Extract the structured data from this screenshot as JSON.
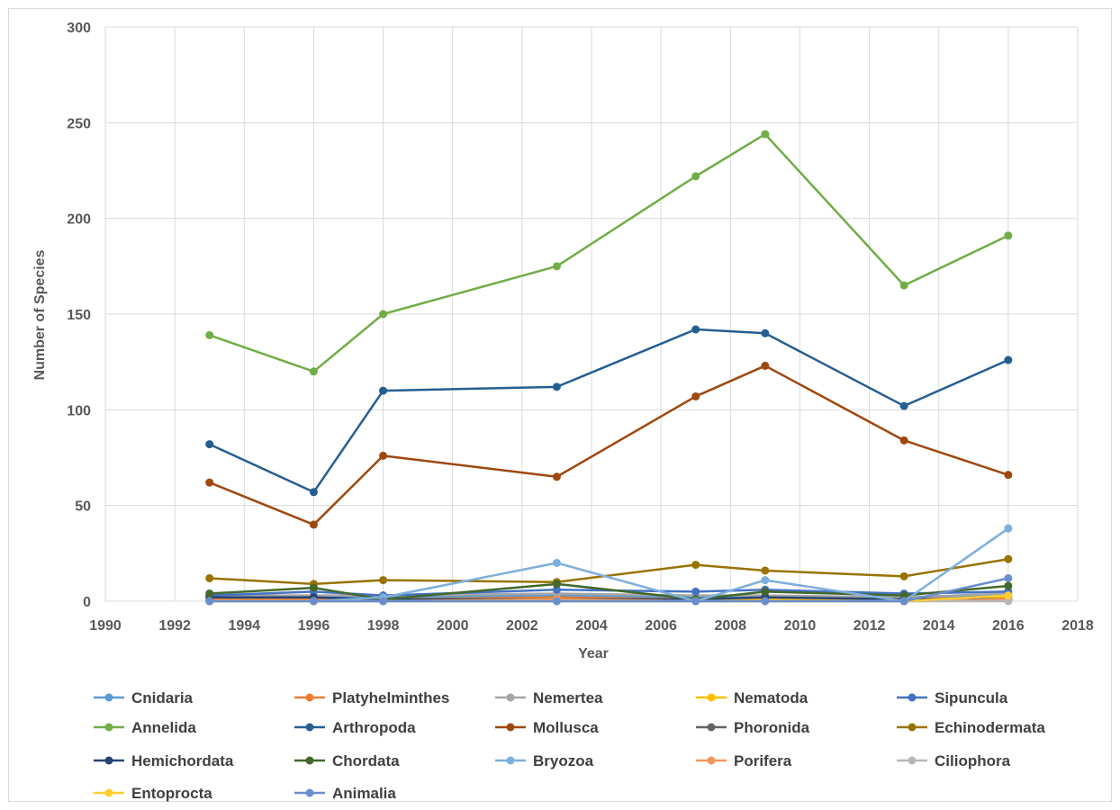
{
  "chart_data": {
    "type": "line",
    "xlabel": "Year",
    "ylabel": "Number of Species",
    "xlim": [
      1990,
      2018
    ],
    "ylim": [
      0,
      300
    ],
    "x_ticks": [
      "1990",
      "1992",
      "1994",
      "1996",
      "1998",
      "2000",
      "2002",
      "2004",
      "2006",
      "2008",
      "2010",
      "2012",
      "2014",
      "2016",
      "2018"
    ],
    "y_ticks": [
      "0",
      "50",
      "100",
      "150",
      "200",
      "250",
      "300"
    ],
    "grid": true,
    "legend_position": "bottom",
    "x": [
      1993,
      1996,
      1998,
      2003,
      2007,
      2009,
      2013,
      2016
    ],
    "series": [
      {
        "name": "Cnidaria",
        "color": "#5b9bd5",
        "values": [
          2,
          2,
          2,
          3,
          2,
          2,
          2,
          3
        ]
      },
      {
        "name": "Platyhelminthes",
        "color": "#ed7d31",
        "values": [
          1,
          1,
          1,
          2,
          1,
          1,
          1,
          2
        ]
      },
      {
        "name": "Nemertea",
        "color": "#a5a5a5",
        "values": [
          3,
          3,
          3,
          4,
          3,
          3,
          2,
          4
        ]
      },
      {
        "name": "Nematoda",
        "color": "#ffc000",
        "values": [
          0,
          0,
          1,
          1,
          0,
          1,
          0,
          2
        ]
      },
      {
        "name": "Sipuncula",
        "color": "#4472c4",
        "values": [
          3,
          5,
          3,
          6,
          5,
          6,
          4,
          5
        ]
      },
      {
        "name": "Annelida",
        "color": "#70ad47",
        "values": [
          139,
          120,
          150,
          175,
          222,
          244,
          165,
          191
        ]
      },
      {
        "name": "Arthropoda",
        "color": "#255e91",
        "values": [
          82,
          57,
          110,
          112,
          142,
          140,
          102,
          126
        ]
      },
      {
        "name": "Mollusca",
        "color": "#9e480e",
        "values": [
          62,
          40,
          76,
          65,
          107,
          123,
          84,
          66
        ]
      },
      {
        "name": "Phoronida",
        "color": "#636363",
        "values": [
          0,
          0,
          0,
          0,
          0,
          0,
          0,
          1
        ]
      },
      {
        "name": "Echinodermata",
        "color": "#997300",
        "values": [
          12,
          9,
          11,
          10,
          19,
          16,
          13,
          22
        ]
      },
      {
        "name": "Hemichordata",
        "color": "#264478",
        "values": [
          2,
          2,
          1,
          1,
          1,
          2,
          1,
          1
        ]
      },
      {
        "name": "Chordata",
        "color": "#43682b",
        "values": [
          4,
          7,
          1,
          9,
          1,
          5,
          3,
          8
        ]
      },
      {
        "name": "Bryozoa",
        "color": "#7cafdd",
        "values": [
          0,
          0,
          2,
          20,
          0,
          11,
          0,
          38
        ]
      },
      {
        "name": "Porifera",
        "color": "#f1975a",
        "values": [
          0,
          0,
          0,
          1,
          0,
          0,
          0,
          1
        ]
      },
      {
        "name": "Ciliophora",
        "color": "#b7b7b7",
        "values": [
          0,
          0,
          0,
          0,
          0,
          0,
          0,
          0
        ]
      },
      {
        "name": "Entoprocta",
        "color": "#ffcd33",
        "values": [
          0,
          0,
          0,
          0,
          0,
          0,
          0,
          3
        ]
      },
      {
        "name": "Animalia",
        "color": "#698ed0",
        "values": [
          0,
          0,
          0,
          0,
          0,
          0,
          0,
          12
        ]
      }
    ]
  }
}
